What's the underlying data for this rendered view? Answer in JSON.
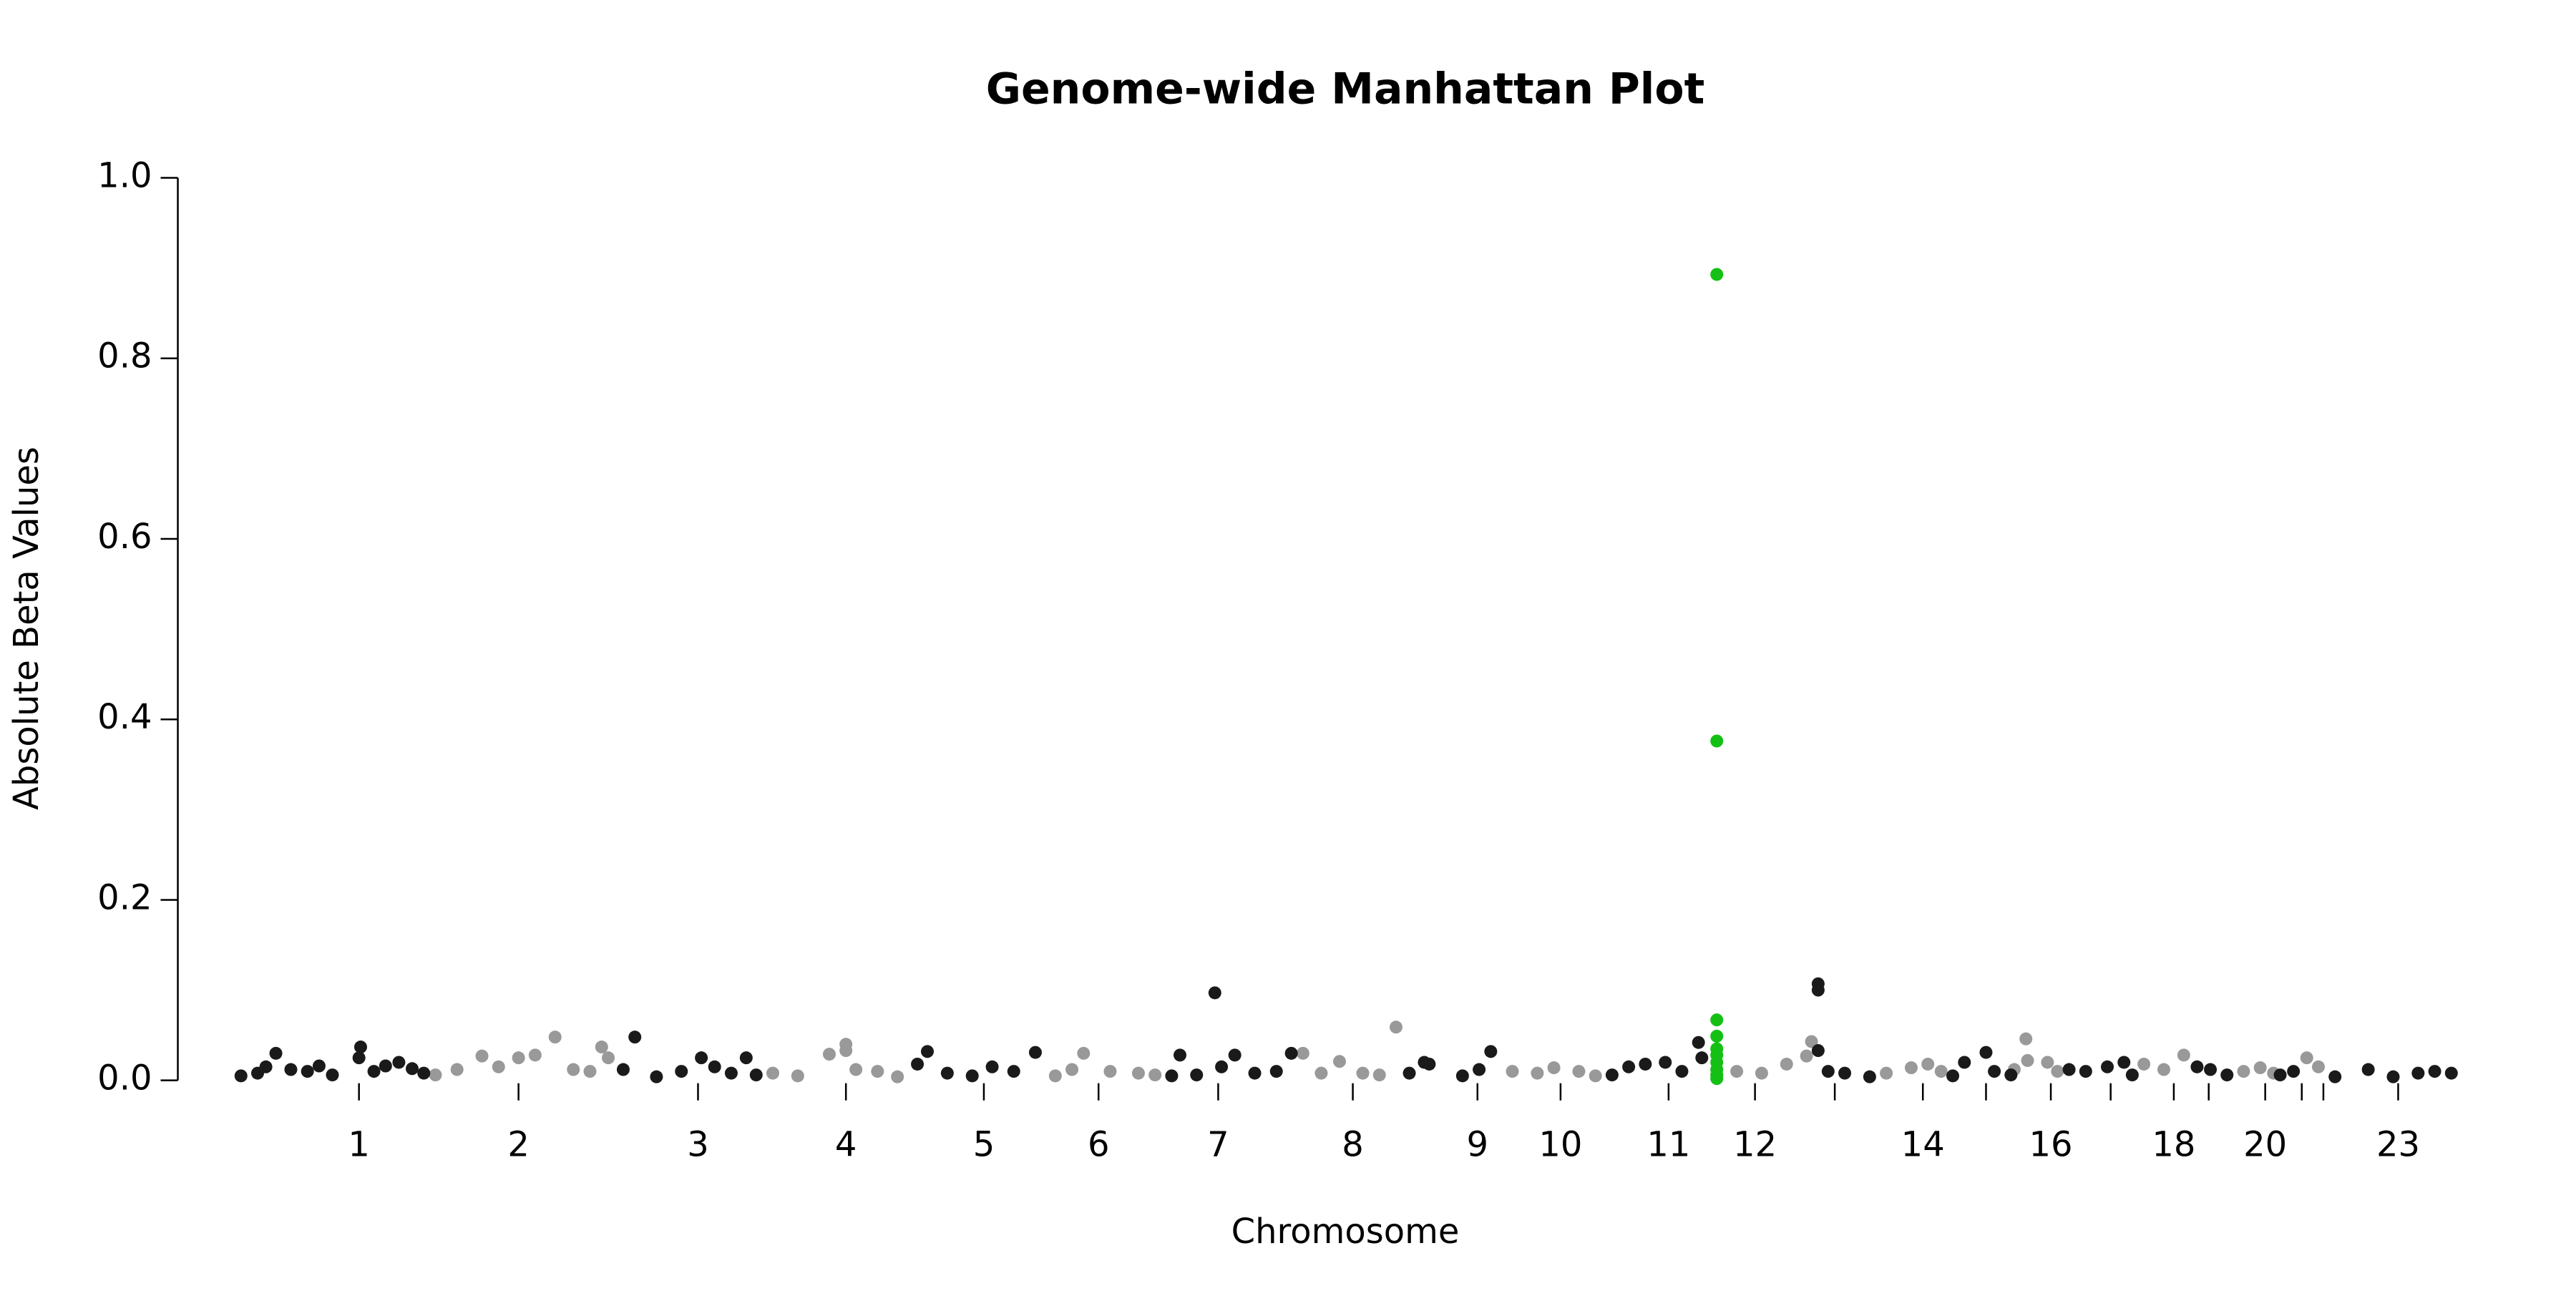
{
  "chart_data": {
    "type": "scatter",
    "title": "Genome-wide Manhattan Plot",
    "x_label": "Chromosome",
    "y_label": "Absolute Beta Values",
    "legend": false,
    "xlim": [
      100,
      1500
    ],
    "ylim": [
      0,
      1
    ],
    "yticks": [
      {
        "value": 0,
        "label": "0.0"
      },
      0.2,
      0.4,
      0.6,
      0.8,
      {
        "value": 1,
        "label": "1.0"
      }
    ],
    "xticks": [
      {
        "value": 216,
        "label": "1"
      },
      {
        "value": 312,
        "label": "2"
      },
      {
        "value": 420,
        "label": "3"
      },
      {
        "value": 509,
        "label": "4"
      },
      {
        "value": 592,
        "label": "5"
      },
      {
        "value": 661,
        "label": "6"
      },
      {
        "value": 733,
        "label": "7"
      },
      {
        "value": 814,
        "label": "8"
      },
      {
        "value": 889,
        "label": "9"
      },
      {
        "value": 939,
        "label": "10"
      },
      {
        "value": 1004,
        "label": "11"
      },
      {
        "value": 1056,
        "label": "12"
      },
      {
        "value": 1104,
        "label": null
      },
      {
        "value": 1157,
        "label": "14"
      },
      {
        "value": 1195,
        "label": null
      },
      {
        "value": 1234,
        "label": "16"
      },
      {
        "value": 1270,
        "label": null
      },
      {
        "value": 1308,
        "label": "18"
      },
      {
        "value": 1329,
        "label": null
      },
      {
        "value": 1363,
        "label": "20"
      },
      {
        "value": 1385,
        "label": null
      },
      {
        "value": 1398,
        "label": null
      },
      {
        "value": 1443,
        "label": "23"
      }
    ],
    "series": [
      {
        "color": "#999999",
        "x": [
          262,
          275,
          290,
          300,
          312,
          322,
          334,
          345,
          355,
          362,
          366,
          465,
          480,
          499,
          509,
          509,
          515,
          528,
          540,
          635,
          645,
          652,
          668,
          685,
          695,
          784,
          795,
          806,
          820,
          830,
          840,
          910,
          925,
          935,
          950,
          960,
          1045,
          1060,
          1075,
          1087,
          1090,
          1135,
          1150,
          1160,
          1168,
          1212,
          1219,
          1220,
          1232,
          1238,
          1290,
          1302,
          1314,
          1350,
          1360,
          1368,
          1388,
          1395
        ],
        "values": [
          0.006,
          0.012,
          0.027,
          0.015,
          0.025,
          0.028,
          0.048,
          0.012,
          0.01,
          0.037,
          0.025,
          0.008,
          0.005,
          0.029,
          0.04,
          0.033,
          0.012,
          0.01,
          0.004,
          0.005,
          0.012,
          0.03,
          0.01,
          0.008,
          0.006,
          0.03,
          0.008,
          0.021,
          0.008,
          0.006,
          0.059,
          0.01,
          0.008,
          0.014,
          0.01,
          0.005,
          0.01,
          0.008,
          0.018,
          0.027,
          0.043,
          0.008,
          0.014,
          0.018,
          0.01,
          0.012,
          0.046,
          0.022,
          0.02,
          0.01,
          0.018,
          0.012,
          0.028,
          0.01,
          0.014,
          0.008,
          0.025,
          0.015
        ]
      },
      {
        "color": "#1a1a1a",
        "x": [
          145,
          155,
          160,
          175,
          185,
          192,
          200,
          166,
          216,
          217,
          225,
          232,
          240,
          248,
          255,
          375,
          382,
          395,
          410,
          422,
          430,
          440,
          449,
          455,
          552,
          558,
          570,
          585,
          597,
          610,
          623,
          705,
          710,
          720,
          731,
          735,
          743,
          755,
          768,
          777,
          848,
          857,
          860,
          880,
          890,
          897,
          970,
          980,
          990,
          1002,
          1012,
          1022,
          1024,
          1094,
          1094,
          1094,
          1100,
          1110,
          1125,
          1175,
          1182,
          1195,
          1200,
          1210,
          1245,
          1255,
          1268,
          1278,
          1283,
          1322,
          1330,
          1340,
          1372,
          1380,
          1405,
          1425,
          1440,
          1455,
          1465,
          1475
        ],
        "values": [
          0.005,
          0.008,
          0.015,
          0.012,
          0.01,
          0.016,
          0.006,
          0.03,
          0.025,
          0.037,
          0.01,
          0.016,
          0.02,
          0.013,
          0.008,
          0.012,
          0.048,
          0.004,
          0.01,
          0.025,
          0.015,
          0.008,
          0.025,
          0.006,
          0.018,
          0.032,
          0.008,
          0.005,
          0.015,
          0.01,
          0.031,
          0.005,
          0.028,
          0.006,
          0.097,
          0.015,
          0.028,
          0.008,
          0.01,
          0.03,
          0.008,
          0.02,
          0.018,
          0.005,
          0.012,
          0.032,
          0.006,
          0.015,
          0.018,
          0.02,
          0.01,
          0.042,
          0.025,
          0.107,
          0.1,
          0.033,
          0.01,
          0.008,
          0.004,
          0.005,
          0.02,
          0.031,
          0.01,
          0.006,
          0.012,
          0.01,
          0.015,
          0.02,
          0.006,
          0.015,
          0.012,
          0.006,
          0.006,
          0.01,
          0.004,
          0.012,
          0.004,
          0.008,
          0.01,
          0.008
        ]
      },
      {
        "color": "#14c014",
        "x": [
          1033,
          1033,
          1033,
          1033,
          1033,
          1033,
          1033,
          1033,
          1033,
          1033
        ],
        "values": [
          0.893,
          0.376,
          0.067,
          0.049,
          0.035,
          0.028,
          0.02,
          0.012,
          0.006,
          0.002
        ]
      }
    ]
  }
}
